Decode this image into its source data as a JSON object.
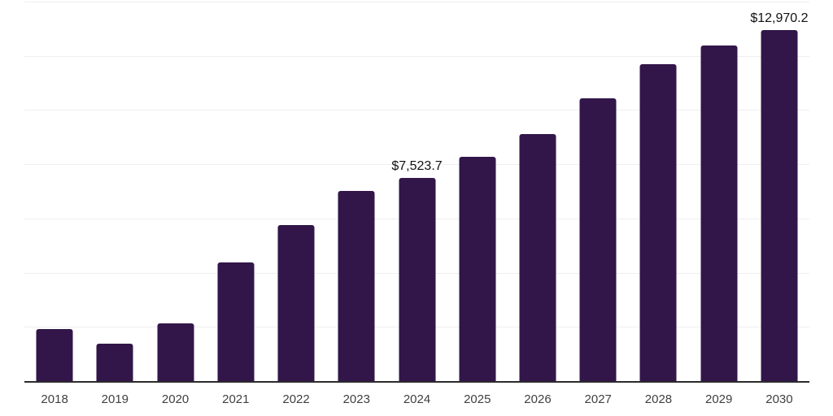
{
  "chart_data": {
    "type": "bar",
    "title": "",
    "xlabel": "",
    "ylabel": "",
    "categories": [
      "2018",
      "2019",
      "2020",
      "2021",
      "2022",
      "2023",
      "2024",
      "2025",
      "2026",
      "2027",
      "2028",
      "2029",
      "2030"
    ],
    "values": [
      1950,
      1410,
      2160,
      4420,
      5800,
      7050,
      7523.7,
      8300,
      9130,
      10470,
      11730,
      12420,
      12970.2
    ],
    "data_labels": [
      "",
      "",
      "",
      "",
      "",
      "",
      "$7,523.7",
      "",
      "",
      "",
      "",
      "",
      "$12,970.2"
    ],
    "ylim": [
      0,
      14000
    ],
    "gridline_step": 2000,
    "grid": "horizontal",
    "legend": "none",
    "y_tick_labels_shown": false
  },
  "colors": {
    "bar": "#32164a",
    "axis": "#2b2b2b",
    "gridline": "#efeff1",
    "tick_label": "#3f3f3f",
    "data_label": "#111111",
    "background": "#ffffff"
  }
}
